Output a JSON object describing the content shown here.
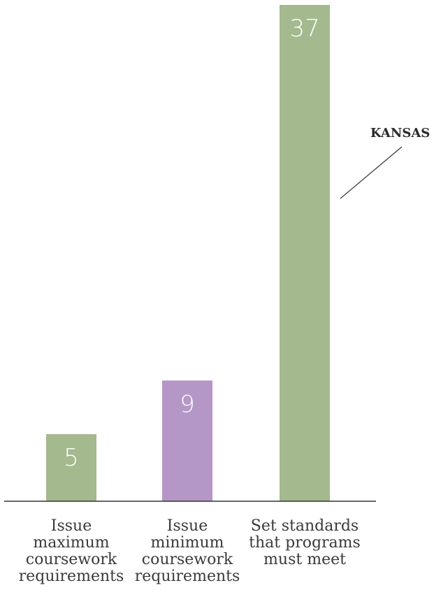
{
  "chart_data": {
    "type": "bar",
    "categories": [
      [
        "Issue",
        "maximum",
        "coursework",
        "requirements"
      ],
      [
        "Issue",
        "minimum",
        "coursework",
        "requirements"
      ],
      [
        "Set standards",
        "that programs",
        "must meet"
      ]
    ],
    "values": [
      5,
      9,
      37
    ],
    "colors": [
      "#a4b98e",
      "#b497c6",
      "#a4b98e"
    ],
    "data_labels": [
      "5",
      "9",
      "37"
    ],
    "annotation": {
      "label": "KANSAS",
      "target_category_index": 2
    },
    "ylim": [
      0,
      37
    ],
    "grid": false,
    "legend": "none"
  }
}
